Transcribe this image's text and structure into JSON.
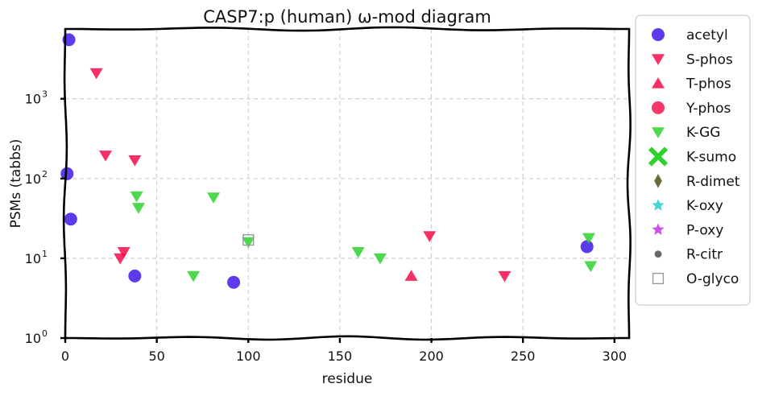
{
  "chart_data": {
    "type": "scatter",
    "title": "CASP7:p (human) ω-mod diagram",
    "xlabel": "residue",
    "ylabel": "PSMs (tabbs)",
    "xlim": [
      0,
      308
    ],
    "ylim": [
      1,
      7500
    ],
    "yscale": "log",
    "grid": true,
    "legend_position": "outside-right",
    "x_ticks": [
      0,
      50,
      100,
      150,
      200,
      250,
      300
    ],
    "x_tick_labels": [
      "0",
      "50",
      "100",
      "150",
      "200",
      "250",
      "300"
    ],
    "y_ticks": [
      1,
      10,
      100,
      1000
    ],
    "y_tick_labels": [
      "10",
      "10",
      "10",
      "10"
    ],
    "y_tick_exponents": [
      "0",
      "1",
      "2",
      "3"
    ],
    "series": [
      {
        "name": "acetyl",
        "marker": "circle",
        "color": "#3b0fe6",
        "points": [
          [
            2,
            5500
          ],
          [
            1,
            115
          ],
          [
            3,
            31
          ],
          [
            38,
            6
          ],
          [
            92,
            5
          ],
          [
            285,
            14
          ]
        ]
      },
      {
        "name": "S-phos",
        "marker": "triangle-down",
        "color": "#f50c4a",
        "points": [
          [
            17,
            2100
          ],
          [
            22,
            195
          ],
          [
            38,
            170
          ],
          [
            32,
            12
          ],
          [
            30,
            10
          ],
          [
            199,
            19
          ],
          [
            240,
            6
          ]
        ]
      },
      {
        "name": "T-phos",
        "marker": "triangle-up",
        "color": "#f50c4a",
        "points": [
          [
            189,
            6
          ]
        ]
      },
      {
        "name": "Y-phos",
        "marker": "circle",
        "color": "#f50c4a",
        "points": []
      },
      {
        "name": "K-GG",
        "marker": "triangle-down",
        "color": "#2fd12f",
        "points": [
          [
            39,
            60
          ],
          [
            40,
            43
          ],
          [
            81,
            58
          ],
          [
            100,
            16
          ],
          [
            160,
            12
          ],
          [
            172,
            10
          ],
          [
            70,
            6
          ],
          [
            286,
            18
          ],
          [
            287,
            8
          ]
        ]
      },
      {
        "name": "K-sumo",
        "marker": "x",
        "color": "#2fd12f",
        "points": []
      },
      {
        "name": "R-dimet",
        "marker": "diamond",
        "color": "#6b6b3a",
        "points": []
      },
      {
        "name": "K-oxy",
        "marker": "star",
        "color": "#22cccc",
        "points": []
      },
      {
        "name": "P-oxy",
        "marker": "star",
        "color": "#c733e0",
        "points": []
      },
      {
        "name": "R-citr",
        "marker": "circle-small",
        "color": "#666666",
        "points": []
      },
      {
        "name": "O-glyco",
        "marker": "square-open",
        "color": "#999999",
        "points": [
          [
            100,
            17
          ]
        ]
      }
    ]
  }
}
